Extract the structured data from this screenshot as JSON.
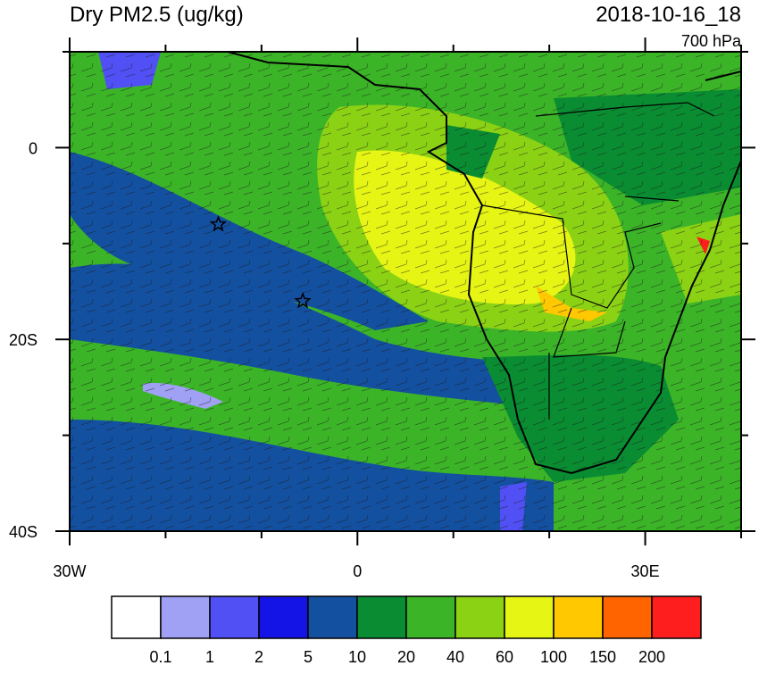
{
  "header": {
    "title": "Dry PM2.5 (ug/kg)",
    "time": "2018-10-16_18",
    "level": "700 hPa"
  },
  "axes": {
    "lon_lim": [
      -30,
      40
    ],
    "lat_lim": [
      -40,
      10
    ],
    "x_ticks": [
      {
        "value": -30,
        "label": "30W"
      },
      {
        "value": 0,
        "label": "0"
      },
      {
        "value": 30,
        "label": "30E"
      }
    ],
    "x_minor_ticks": [
      -20,
      -10,
      10,
      20,
      40
    ],
    "y_ticks": [
      {
        "value": 0,
        "label": "0"
      },
      {
        "value": -20,
        "label": "20S"
      },
      {
        "value": -40,
        "label": "40S"
      }
    ],
    "y_minor_ticks": [
      10,
      -10,
      -30
    ]
  },
  "markers": [
    {
      "lon": -14.5,
      "lat": -8
    },
    {
      "lon": -5.7,
      "lat": -16
    }
  ],
  "colorbar": {
    "levels": [
      0.1,
      1,
      2,
      5,
      10,
      20,
      40,
      60,
      100,
      150,
      200
    ],
    "colors": [
      "#ffffff",
      "#a0a0f5",
      "#5050f5",
      "#1414e6",
      "#1450a0",
      "#0a8c32",
      "#3cb428",
      "#8cd214",
      "#e6f514",
      "#ffc800",
      "#ff6400",
      "#ff1e1e"
    ]
  }
}
